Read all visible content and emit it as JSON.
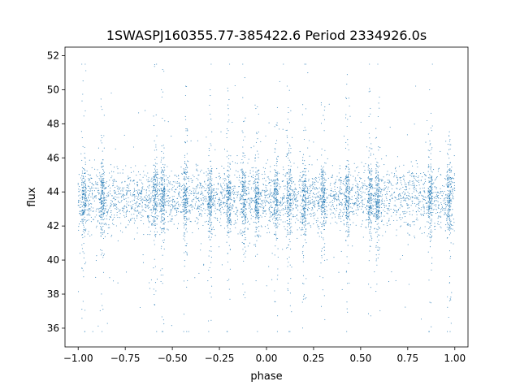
{
  "chart_data": {
    "type": "scatter",
    "title": "1SWASPJ160355.77-385422.6 Period 2334926.0s",
    "xlabel": "phase",
    "ylabel": "flux",
    "xlim": [
      -1.07,
      1.07
    ],
    "ylim": [
      34.9,
      52.5
    ],
    "xticks": [
      -1.0,
      -0.75,
      -0.5,
      -0.25,
      0.0,
      0.25,
      0.5,
      0.75,
      1.0
    ],
    "xtick_labels": [
      "−1.00",
      "−0.75",
      "−0.50",
      "−0.25",
      "0.00",
      "0.25",
      "0.50",
      "0.75",
      "1.00"
    ],
    "yticks": [
      36,
      38,
      40,
      42,
      44,
      46,
      48,
      50,
      52
    ],
    "ytick_labels": [
      "36",
      "38",
      "40",
      "42",
      "44",
      "46",
      "48",
      "50",
      "52"
    ],
    "grid": false,
    "marker_color": "#1f77b4",
    "series": [
      {
        "phase_range": [
          -1.0,
          1.0
        ],
        "flux_center": 43.6,
        "flux_core_range": [
          42.0,
          45.5
        ],
        "flux_min": 35.8,
        "flux_max": 51.5,
        "symmetric_about_zero": true,
        "dense_stripe_phases": [
          -0.97,
          -0.87,
          -0.59,
          -0.55,
          -0.43,
          -0.3,
          -0.2,
          -0.12,
          -0.05,
          0.05,
          0.12,
          0.2,
          0.3,
          0.43,
          0.55,
          0.59,
          0.87,
          0.97
        ]
      }
    ]
  }
}
